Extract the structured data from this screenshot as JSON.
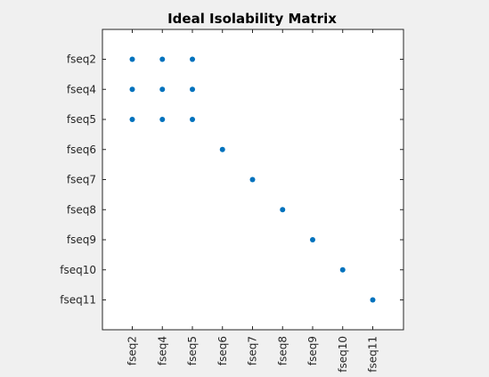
{
  "figure": {
    "background": "#f0f0f0",
    "axes_background": "#ffffff",
    "axis_color": "#262626",
    "marker_color": "#0072bd"
  },
  "chart_data": {
    "type": "scatter",
    "title": "Ideal Isolability Matrix",
    "xlabel": "",
    "ylabel": "",
    "x_categories": [
      "fseq2",
      "fseq4",
      "fseq5",
      "fseq6",
      "fseq7",
      "fseq8",
      "fseq9",
      "fseq10",
      "fseq11"
    ],
    "y_categories": [
      "fseq2",
      "fseq4",
      "fseq5",
      "fseq6",
      "fseq7",
      "fseq8",
      "fseq9",
      "fseq10",
      "fseq11"
    ],
    "y_direction": "top-to-bottom",
    "x_tick_rotation": "vertical",
    "grid": false,
    "box": true,
    "points": [
      {
        "x": "fseq2",
        "y": "fseq2"
      },
      {
        "x": "fseq4",
        "y": "fseq2"
      },
      {
        "x": "fseq5",
        "y": "fseq2"
      },
      {
        "x": "fseq2",
        "y": "fseq4"
      },
      {
        "x": "fseq4",
        "y": "fseq4"
      },
      {
        "x": "fseq5",
        "y": "fseq4"
      },
      {
        "x": "fseq2",
        "y": "fseq5"
      },
      {
        "x": "fseq4",
        "y": "fseq5"
      },
      {
        "x": "fseq5",
        "y": "fseq5"
      },
      {
        "x": "fseq6",
        "y": "fseq6"
      },
      {
        "x": "fseq7",
        "y": "fseq7"
      },
      {
        "x": "fseq8",
        "y": "fseq8"
      },
      {
        "x": "fseq9",
        "y": "fseq9"
      },
      {
        "x": "fseq10",
        "y": "fseq10"
      },
      {
        "x": "fseq11",
        "y": "fseq11"
      }
    ]
  }
}
